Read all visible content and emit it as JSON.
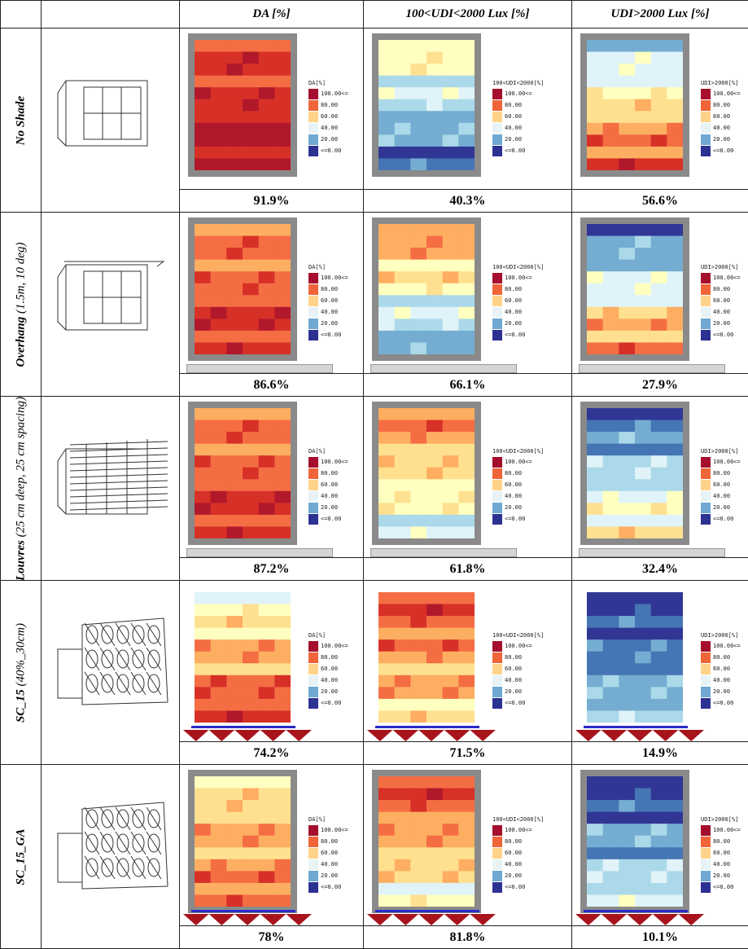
{
  "headers": [
    "",
    "",
    "DA [%]",
    "100<UDI<2000 Lux [%]",
    "UDI>2000 Lux  [%]"
  ],
  "legend_levels": [
    "100.00<=",
    "80.00",
    "60.00",
    "40.00",
    "20.00",
    "<=0.00"
  ],
  "legend_colors": [
    "#a50f2d",
    "#f0643a",
    "#fed389",
    "#e8f3f5",
    "#6fa8d2",
    "#2c3192"
  ],
  "metric_titles": [
    "DA[%]",
    "100<UDI<2000[%]",
    "UDI>2000[%]"
  ],
  "rows": [
    {
      "name": "No Shade",
      "sub": "",
      "type": "box",
      "values": [
        "91.9%",
        "40.3%",
        "56.6%"
      ]
    },
    {
      "name": "Overhang",
      "sub": " (1.5m, 10 deg)",
      "type": "overhang",
      "values": [
        "86.6%",
        "66.1%",
        "27.9%"
      ]
    },
    {
      "name": "Louvres",
      "sub": " (25 cm deep, 25 cm spacing)",
      "type": "louvres",
      "values": [
        "87.2%",
        "61.8%",
        "32.4%"
      ]
    },
    {
      "name": "SC_15",
      "sub": " (40%_30cm)",
      "type": "sc",
      "values": [
        "74.2%",
        "71.5%",
        "14.9%"
      ]
    },
    {
      "name": "SC_15_GA",
      "sub": "",
      "type": "sc",
      "values": [
        "78%",
        "81.8%",
        "10.1%"
      ]
    }
  ]
}
